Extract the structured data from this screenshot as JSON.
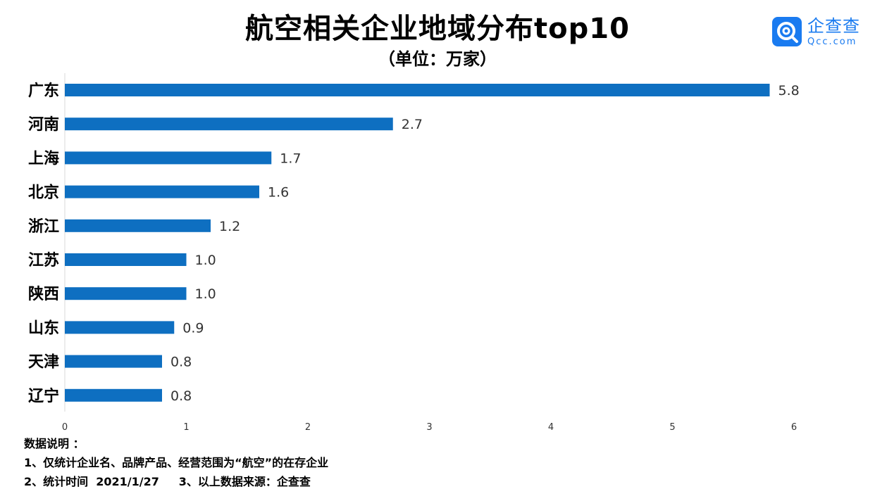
{
  "header": {
    "title": "航空相关企业地域分布top10",
    "subtitle": "（单位：万家）"
  },
  "logo": {
    "name": "企查查",
    "domain": "Qcc.com",
    "color": "#1a7bf0"
  },
  "notes": {
    "heading": "数据说明 ：",
    "line1": "1、仅统计企业名、品牌产品、经营范围为“航空”的在存企业",
    "line2": "2、统计时间  2021/1/27     3、以上数据来源：企查查"
  },
  "chart_data": {
    "type": "bar",
    "orientation": "horizontal",
    "categories": [
      "广东",
      "河南",
      "上海",
      "北京",
      "浙江",
      "江苏",
      "陕西",
      "山东",
      "天津",
      "辽宁"
    ],
    "values": [
      5.8,
      2.7,
      1.7,
      1.6,
      1.2,
      1.0,
      1.0,
      0.9,
      0.8,
      0.8
    ],
    "value_labels": [
      "5.8",
      "2.7",
      "1.7",
      "1.6",
      "1.2",
      "1.0",
      "1.0",
      "0.9",
      "0.8",
      "0.8"
    ],
    "xticks": [
      "0",
      "1",
      "2",
      "3",
      "4",
      "5",
      "6"
    ],
    "xlim": [
      0,
      6
    ],
    "bar_color": "#0e6fc1",
    "grid": false
  }
}
